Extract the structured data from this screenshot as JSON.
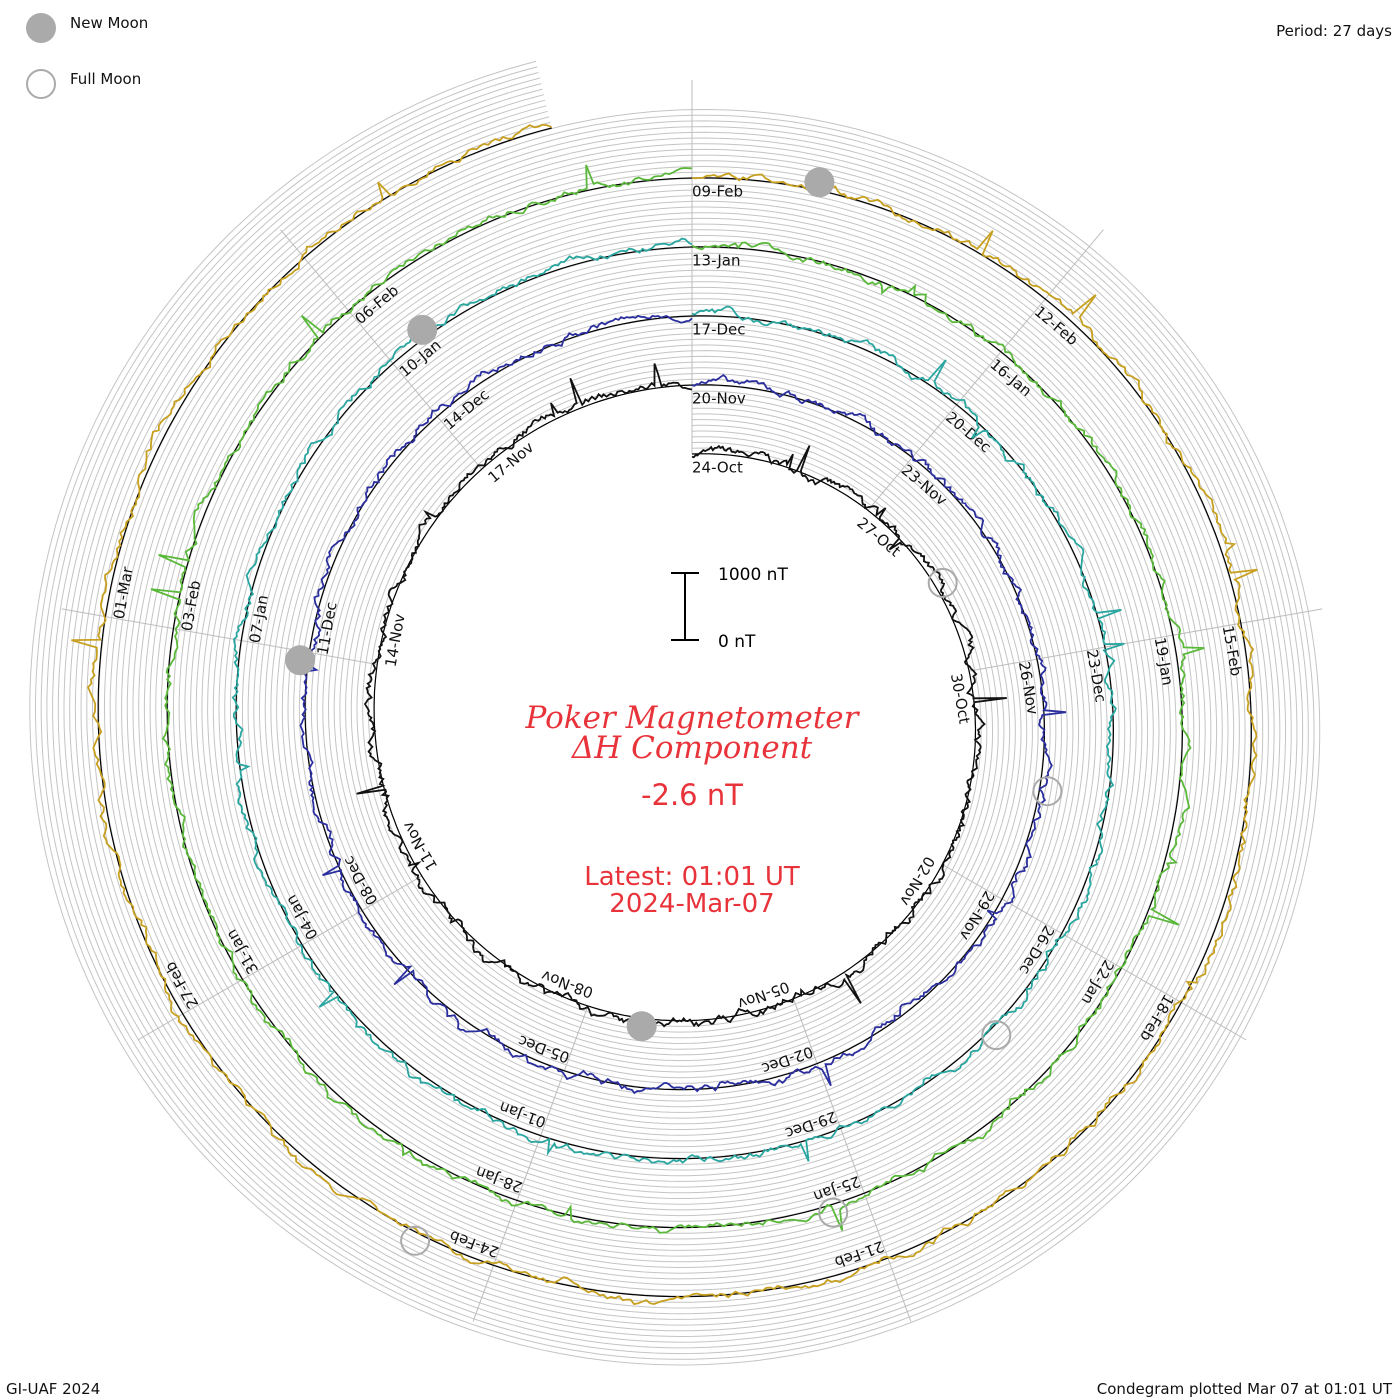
{
  "legend": {
    "new_moon_label": "New Moon",
    "full_moon_label": "Full Moon",
    "new_moon_color": "#aaaaaa",
    "full_moon_color": "#aaaaaa"
  },
  "header": {
    "period_label": "Period: 27 days"
  },
  "footer": {
    "credit": "GI-UAF 2024",
    "plotted": "Condegram plotted Mar 07 at 01:01 UT"
  },
  "center": {
    "title_line1": "Poker Magnetometer",
    "title_line2": "ΔH Component",
    "value": "-2.6 nT",
    "latest_line1": "Latest: 01:01 UT",
    "latest_line2": "2024-Mar-07",
    "text_color": "#e8333a",
    "scale_top_label": "1000 nT",
    "scale_bottom_label": "0 nT"
  },
  "chart_data": {
    "type": "line",
    "form": "condegram spiral",
    "period_days": 27,
    "scale_nT": [
      0,
      1000
    ],
    "grid": true,
    "rotations": [
      {
        "color": "#111111",
        "date_labels": [
          "24-Oct",
          "27-Oct",
          "30-Oct",
          "02-Nov",
          "05-Nov",
          "08-Nov",
          "11-Nov",
          "14-Nov",
          "17-Nov"
        ]
      },
      {
        "color": "#2b2f9e",
        "date_labels": [
          "20-Nov",
          "23-Nov",
          "26-Nov",
          "29-Nov",
          "02-Dec",
          "05-Dec",
          "08-Dec",
          "11-Dec",
          "14-Dec"
        ]
      },
      {
        "color": "#2aa6a0",
        "date_labels": [
          "17-Dec",
          "20-Dec",
          "23-Dec",
          "26-Dec",
          "29-Dec",
          "01-Jan",
          "04-Jan",
          "07-Jan",
          "10-Jan"
        ]
      },
      {
        "color": "#5ab83a",
        "date_labels": [
          "13-Jan",
          "16-Jan",
          "19-Jan",
          "22-Jan",
          "25-Jan",
          "28-Jan",
          "31-Jan",
          "03-Feb",
          "06-Feb"
        ]
      },
      {
        "color": "#c8a020",
        "date_labels": [
          "09-Feb",
          "12-Feb",
          "15-Feb",
          "18-Feb",
          "21-Feb",
          "24-Feb",
          "27-Feb",
          "01-Mar"
        ]
      }
    ],
    "moons": [
      {
        "type": "new",
        "rotation": 0,
        "day": 14.2
      },
      {
        "type": "new",
        "rotation": 1,
        "day": 20.9
      },
      {
        "type": "new",
        "rotation": 2,
        "day": 24.4
      },
      {
        "type": "new",
        "rotation": 4,
        "day": 1.0
      },
      {
        "type": "full",
        "rotation": 0,
        "day": 4.6
      },
      {
        "type": "full",
        "rotation": 1,
        "day": 7.6
      },
      {
        "type": "full",
        "rotation": 2,
        "day": 10.2
      },
      {
        "type": "full",
        "rotation": 3,
        "day": 12.3
      },
      {
        "type": "full",
        "rotation": 4,
        "day": 15.6
      }
    ]
  }
}
